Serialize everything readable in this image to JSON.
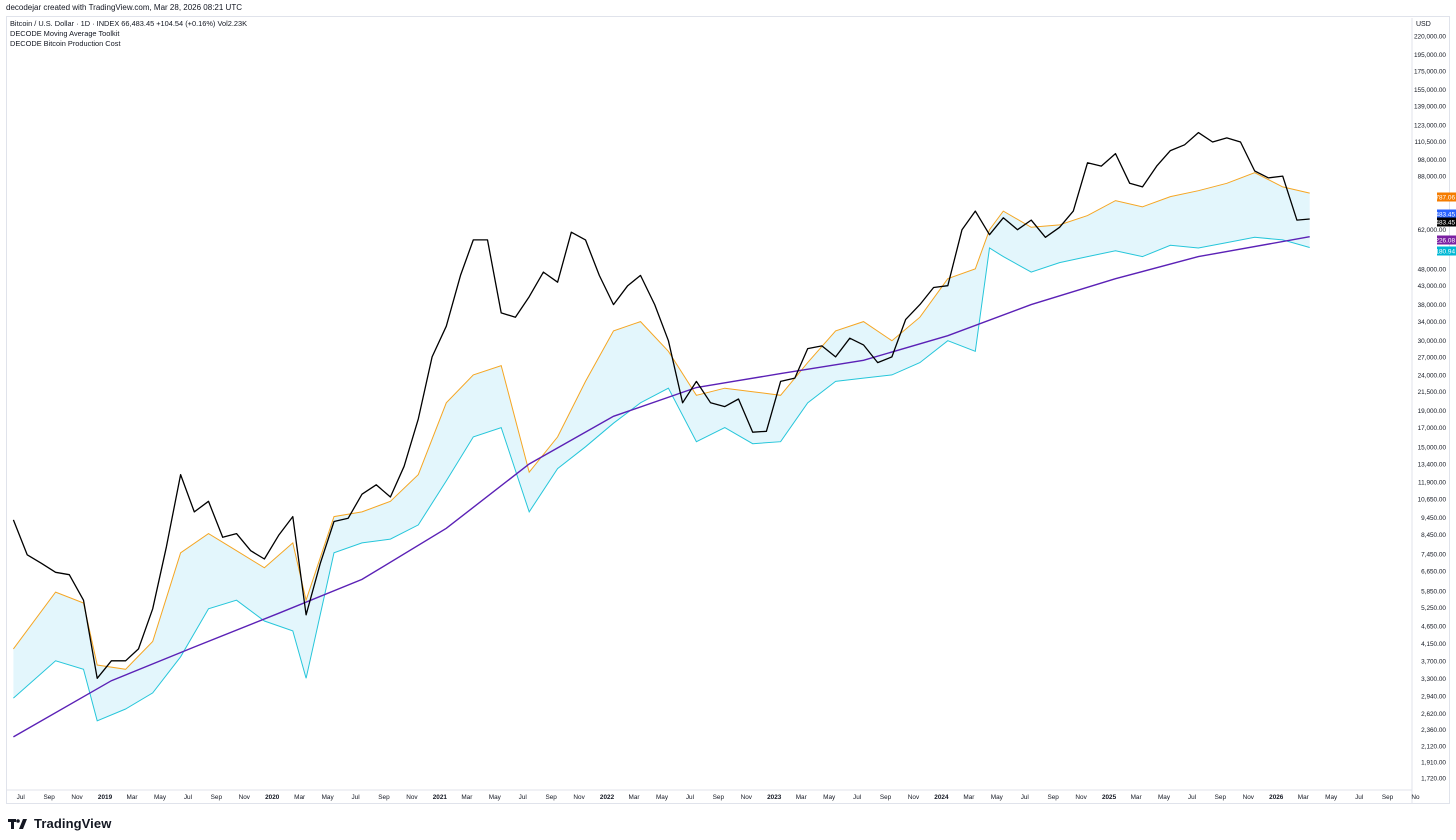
{
  "header": {
    "created_line": "decodejar created with TradingView.com, Mar 28, 2026 08:21 UTC"
  },
  "legend": {
    "symbol_line": "Bitcoin / U.S. Dollar · 1D · INDEX  66,483.45  +104.54 (+0.16%)  Vol2.23K",
    "indicator_1": "DECODE Moving Average Toolkit",
    "indicator_2": "DECODE Bitcoin Production Cost"
  },
  "footer": {
    "brand": "TradingView"
  },
  "colors": {
    "price": "#000000",
    "upper_band": "#f5a623",
    "lower_band": "#26c6da",
    "band_fill": "#e3f6fc",
    "long_ma": "#5b21b6",
    "axis_text": "#131722",
    "grid": "#e0e3eb"
  },
  "chart_data": {
    "type": "line",
    "title": "",
    "scale": "log",
    "currency_label": "USD",
    "x_tick_labels": [
      "Jul",
      "Sep",
      "Nov",
      "2019",
      "Mar",
      "May",
      "Jul",
      "Sep",
      "Nov",
      "2020",
      "Mar",
      "May",
      "Jul",
      "Sep",
      "Nov",
      "2021",
      "Mar",
      "May",
      "Jul",
      "Sep",
      "Nov",
      "2022",
      "Mar",
      "May",
      "Jul",
      "Sep",
      "Nov",
      "2023",
      "Mar",
      "May",
      "Jul",
      "Sep",
      "Nov",
      "2024",
      "Mar",
      "May",
      "Jul",
      "Sep",
      "Nov",
      "2025",
      "Mar",
      "May",
      "Jul",
      "Sep",
      "Nov",
      "2026",
      "Mar",
      "May",
      "Jul",
      "Sep",
      "No"
    ],
    "y_tick_labels": [
      "220,000.00",
      "195,000.00",
      "175,000.00",
      "155,000.00",
      "139,000.00",
      "123,000.00",
      "110,500.00",
      "98,000.00",
      "88,000.00",
      "62,000.00",
      "48,000.00",
      "43,000.00",
      "38,000.00",
      "34,000.00",
      "30,000.00",
      "27,000.00",
      "24,000.00",
      "21,500.00",
      "19,000.00",
      "17,000.00",
      "15,000.00",
      "13,400.00",
      "11,900.00",
      "10,650.00",
      "9,450.00",
      "8,450.00",
      "7,450.00",
      "6,650.00",
      "5,850.00",
      "5,250.00",
      "4,650.00",
      "4,150.00",
      "3,700.00",
      "3,300.00",
      "2,940.00",
      "2,620.00",
      "2,360.00",
      "2,120.00",
      "1,910.00",
      "1,720.00"
    ],
    "price_labels": [
      {
        "text": "78,787.06",
        "color": "#f57c00",
        "value": 78787.06
      },
      {
        "text": "66,483.45",
        "color": "#2962ff",
        "value": 66483.45
      },
      {
        "text": "66,483.45",
        "color": "#000000",
        "value": 66483.45
      },
      {
        "text": "59,226.08",
        "color": "#7b1fa2",
        "value": 59226.08
      },
      {
        "text": "55,180.94",
        "color": "#00b8d4",
        "value": 55180.94
      }
    ],
    "series": [
      {
        "name": "Bitcoin / U.S. Dollar",
        "color": "#000000",
        "x": [
          "2018-06",
          "2018-07",
          "2018-08",
          "2018-09",
          "2018-10",
          "2018-11",
          "2018-12",
          "2019-01",
          "2019-02",
          "2019-03",
          "2019-04",
          "2019-05",
          "2019-06",
          "2019-07",
          "2019-08",
          "2019-09",
          "2019-10",
          "2019-11",
          "2019-12",
          "2020-01",
          "2020-02",
          "2020-03",
          "2020-04",
          "2020-05",
          "2020-06",
          "2020-07",
          "2020-08",
          "2020-09",
          "2020-10",
          "2020-11",
          "2020-12",
          "2021-01",
          "2021-02",
          "2021-03",
          "2021-04",
          "2021-05",
          "2021-06",
          "2021-07",
          "2021-08",
          "2021-09",
          "2021-10",
          "2021-11",
          "2021-12",
          "2022-01",
          "2022-02",
          "2022-03",
          "2022-04",
          "2022-05",
          "2022-06",
          "2022-07",
          "2022-08",
          "2022-09",
          "2022-10",
          "2022-11",
          "2022-12",
          "2023-01",
          "2023-02",
          "2023-03",
          "2023-04",
          "2023-05",
          "2023-06",
          "2023-07",
          "2023-08",
          "2023-09",
          "2023-10",
          "2023-11",
          "2023-12",
          "2024-01",
          "2024-02",
          "2024-03",
          "2024-04",
          "2024-05",
          "2024-06",
          "2024-07",
          "2024-08",
          "2024-09",
          "2024-10",
          "2024-11",
          "2024-12",
          "2025-01",
          "2025-02",
          "2025-03",
          "2025-04",
          "2025-05",
          "2025-06",
          "2025-07",
          "2025-08",
          "2025-09",
          "2025-10",
          "2025-11",
          "2025-12",
          "2026-01",
          "2026-02",
          "2026-03"
        ],
        "values": [
          9300,
          7400,
          7000,
          6600,
          6500,
          5500,
          3300,
          3700,
          3700,
          4000,
          5200,
          7800,
          12500,
          9800,
          10500,
          8300,
          8500,
          7600,
          7200,
          8400,
          9500,
          5000,
          7000,
          9200,
          9400,
          11000,
          11700,
          10800,
          13200,
          18000,
          27000,
          33000,
          46000,
          58000,
          58000,
          36000,
          35000,
          40000,
          47000,
          44000,
          61000,
          58000,
          46000,
          38000,
          43000,
          46000,
          38000,
          30000,
          20000,
          23000,
          20000,
          19500,
          20500,
          16500,
          16600,
          23000,
          23500,
          28500,
          29000,
          27000,
          30500,
          29200,
          26000,
          27000,
          34500,
          38000,
          42500,
          43000,
          62000,
          70000,
          60000,
          67000,
          62000,
          66000,
          59000,
          63000,
          70000,
          96000,
          94000,
          102000,
          84000,
          82000,
          94000,
          104000,
          108000,
          117000,
          110000,
          113000,
          110000,
          91000,
          87000,
          88000,
          66000,
          66483
        ]
      },
      {
        "name": "Upper band",
        "color": "#f5a623",
        "x": [
          "2018-06",
          "2018-09",
          "2018-11",
          "2018-12",
          "2019-02",
          "2019-04",
          "2019-06",
          "2019-08",
          "2019-10",
          "2019-12",
          "2020-02",
          "2020-03",
          "2020-05",
          "2020-07",
          "2020-09",
          "2020-11",
          "2021-01",
          "2021-03",
          "2021-05",
          "2021-07",
          "2021-09",
          "2021-11",
          "2022-01",
          "2022-03",
          "2022-05",
          "2022-07",
          "2022-09",
          "2022-11",
          "2023-01",
          "2023-03",
          "2023-05",
          "2023-07",
          "2023-09",
          "2023-11",
          "2024-01",
          "2024-03",
          "2024-04",
          "2024-05",
          "2024-07",
          "2024-09",
          "2024-11",
          "2025-01",
          "2025-03",
          "2025-05",
          "2025-07",
          "2025-09",
          "2025-11",
          "2026-01",
          "2026-03"
        ],
        "values": [
          4000,
          5800,
          5400,
          3600,
          3500,
          4200,
          7500,
          8500,
          7600,
          6800,
          8000,
          5500,
          9500,
          9800,
          10500,
          12500,
          20000,
          24000,
          25500,
          12700,
          16000,
          23000,
          32000,
          34000,
          28000,
          21000,
          22000,
          21500,
          21000,
          26000,
          32000,
          34000,
          30000,
          35000,
          45000,
          48000,
          62000,
          70000,
          63000,
          64000,
          68000,
          75000,
          72000,
          77000,
          80000,
          84000,
          90000,
          82000,
          78787
        ]
      },
      {
        "name": "Lower band",
        "color": "#26c6da",
        "x": [
          "2018-06",
          "2018-09",
          "2018-11",
          "2018-12",
          "2019-02",
          "2019-04",
          "2019-06",
          "2019-08",
          "2019-10",
          "2019-12",
          "2020-02",
          "2020-03",
          "2020-05",
          "2020-07",
          "2020-09",
          "2020-11",
          "2021-01",
          "2021-03",
          "2021-05",
          "2021-07",
          "2021-09",
          "2021-11",
          "2022-01",
          "2022-03",
          "2022-05",
          "2022-07",
          "2022-09",
          "2022-11",
          "2023-01",
          "2023-03",
          "2023-05",
          "2023-07",
          "2023-09",
          "2023-11",
          "2024-01",
          "2024-03",
          "2024-04",
          "2024-05",
          "2024-07",
          "2024-09",
          "2024-11",
          "2025-01",
          "2025-03",
          "2025-05",
          "2025-07",
          "2025-09",
          "2025-11",
          "2026-01",
          "2026-03"
        ],
        "values": [
          2900,
          3700,
          3500,
          2500,
          2700,
          3000,
          3800,
          5200,
          5500,
          4800,
          4500,
          3300,
          7500,
          8000,
          8200,
          9000,
          12000,
          16000,
          17000,
          9800,
          13000,
          15000,
          17500,
          20000,
          22000,
          15500,
          17000,
          15300,
          15500,
          20000,
          23000,
          23500,
          24000,
          26000,
          30000,
          28000,
          55000,
          52000,
          47000,
          50000,
          52000,
          54000,
          52000,
          56000,
          55000,
          57000,
          59000,
          58000,
          55181
        ]
      },
      {
        "name": "Long moving average",
        "color": "#5b21b6",
        "x": [
          "2018-06",
          "2019-01",
          "2019-07",
          "2020-01",
          "2020-07",
          "2021-01",
          "2021-07",
          "2022-01",
          "2022-07",
          "2023-01",
          "2023-07",
          "2024-01",
          "2024-07",
          "2025-01",
          "2025-07",
          "2026-03"
        ],
        "values": [
          2250,
          3250,
          4050,
          5050,
          6300,
          8800,
          13400,
          18300,
          22100,
          24200,
          26400,
          31000,
          38000,
          45000,
          52000,
          59226
        ]
      }
    ]
  }
}
